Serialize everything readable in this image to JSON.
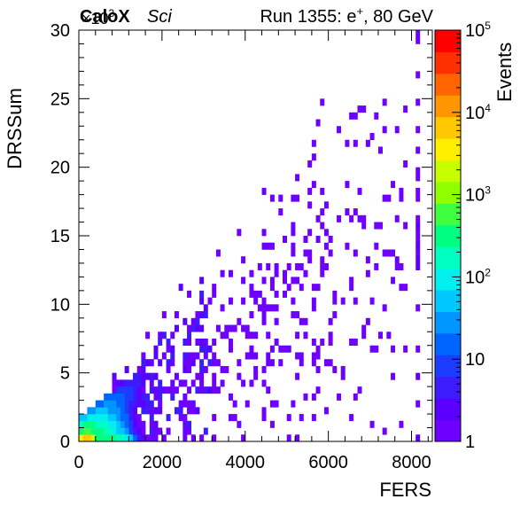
{
  "header": {
    "experiment": "CaloX",
    "detector": "Sci",
    "run_info": "Run 1355: e",
    "run_superscript": "+",
    "run_energy": ", 80 GeV"
  },
  "chart_data": {
    "type": "heatmap",
    "title": "",
    "xlabel": "FERS",
    "ylabel": "DRSSum",
    "zlabel": "Events",
    "xlim": [
      0,
      8500
    ],
    "ylim": [
      0,
      30000
    ],
    "zlim": [
      1,
      100000
    ],
    "z_scale": "log",
    "y_multiplier_label": "×10",
    "y_multiplier_exp": "3",
    "x_ticks": [
      0,
      2000,
      4000,
      6000,
      8000
    ],
    "x_tick_labels": [
      "0",
      "2000",
      "4000",
      "6000",
      "8000"
    ],
    "y_ticks": [
      0,
      5000,
      10000,
      15000,
      20000,
      25000,
      30000
    ],
    "y_tick_labels": [
      "0",
      "5",
      "10",
      "15",
      "20",
      "25",
      "30"
    ],
    "z_tick_labels": [
      {
        "base": "1",
        "exp": ""
      },
      {
        "base": "10",
        "exp": ""
      },
      {
        "base": "10",
        "exp": "2"
      },
      {
        "base": "10",
        "exp": "3"
      },
      {
        "base": "10",
        "exp": "4"
      },
      {
        "base": "10",
        "exp": "5"
      }
    ],
    "palette": [
      "#6e00ff",
      "#5a00ff",
      "#3c1bff",
      "#1e3cff",
      "#0064ff",
      "#0096ff",
      "#00c8ff",
      "#00f0f0",
      "#00ffc0",
      "#00ff80",
      "#40ff40",
      "#90ff00",
      "#c8ff00",
      "#fff000",
      "#ffc800",
      "#ff9600",
      "#ff6400",
      "#ff3000",
      "#ff0000"
    ],
    "bin_width_x": 100,
    "bin_width_y": 500,
    "core_bins": [
      {
        "x": 0,
        "y": 0,
        "c": 3000
      },
      {
        "x": 100,
        "y": 0,
        "c": 8000
      },
      {
        "x": 200,
        "y": 0,
        "c": 6000
      },
      {
        "x": 300,
        "y": 0,
        "c": 1500
      },
      {
        "x": 400,
        "y": 0,
        "c": 400
      },
      {
        "x": 500,
        "y": 0,
        "c": 300
      },
      {
        "x": 600,
        "y": 0,
        "c": 400
      },
      {
        "x": 700,
        "y": 0,
        "c": 300
      },
      {
        "x": 800,
        "y": 0,
        "c": 250
      },
      {
        "x": 900,
        "y": 0,
        "c": 200
      },
      {
        "x": 1000,
        "y": 0,
        "c": 200
      },
      {
        "x": 1100,
        "y": 0,
        "c": 120
      },
      {
        "x": 1200,
        "y": 0,
        "c": 60
      },
      {
        "x": 1300,
        "y": 0,
        "c": 20
      },
      {
        "x": 1400,
        "y": 0,
        "c": 5
      },
      {
        "x": 1500,
        "y": 0,
        "c": 2
      },
      {
        "x": 0,
        "y": 500,
        "c": 400
      },
      {
        "x": 100,
        "y": 500,
        "c": 600
      },
      {
        "x": 200,
        "y": 500,
        "c": 500
      },
      {
        "x": 300,
        "y": 500,
        "c": 400
      },
      {
        "x": 400,
        "y": 500,
        "c": 300
      },
      {
        "x": 500,
        "y": 500,
        "c": 250
      },
      {
        "x": 600,
        "y": 500,
        "c": 200
      },
      {
        "x": 700,
        "y": 500,
        "c": 150
      },
      {
        "x": 800,
        "y": 500,
        "c": 100
      },
      {
        "x": 900,
        "y": 500,
        "c": 60
      },
      {
        "x": 1000,
        "y": 500,
        "c": 40
      },
      {
        "x": 1100,
        "y": 500,
        "c": 25
      },
      {
        "x": 1200,
        "y": 500,
        "c": 10
      },
      {
        "x": 1300,
        "y": 500,
        "c": 5
      },
      {
        "x": 1400,
        "y": 500,
        "c": 2
      },
      {
        "x": 0,
        "y": 1000,
        "c": 150
      },
      {
        "x": 100,
        "y": 1000,
        "c": 250
      },
      {
        "x": 200,
        "y": 1000,
        "c": 300
      },
      {
        "x": 300,
        "y": 1000,
        "c": 250
      },
      {
        "x": 400,
        "y": 1000,
        "c": 200
      },
      {
        "x": 500,
        "y": 1000,
        "c": 160
      },
      {
        "x": 600,
        "y": 1000,
        "c": 130
      },
      {
        "x": 700,
        "y": 1000,
        "c": 100
      },
      {
        "x": 800,
        "y": 1000,
        "c": 70
      },
      {
        "x": 900,
        "y": 1000,
        "c": 45
      },
      {
        "x": 1000,
        "y": 1000,
        "c": 30
      },
      {
        "x": 1100,
        "y": 1000,
        "c": 15
      },
      {
        "x": 1200,
        "y": 1000,
        "c": 8
      },
      {
        "x": 1300,
        "y": 1000,
        "c": 3
      },
      {
        "x": 0,
        "y": 1500,
        "c": 40
      },
      {
        "x": 100,
        "y": 1500,
        "c": 60
      },
      {
        "x": 200,
        "y": 1500,
        "c": 80
      },
      {
        "x": 300,
        "y": 1500,
        "c": 90
      },
      {
        "x": 400,
        "y": 1500,
        "c": 90
      },
      {
        "x": 500,
        "y": 1500,
        "c": 80
      },
      {
        "x": 600,
        "y": 1500,
        "c": 70
      },
      {
        "x": 700,
        "y": 1500,
        "c": 55
      },
      {
        "x": 800,
        "y": 1500,
        "c": 40
      },
      {
        "x": 900,
        "y": 1500,
        "c": 30
      },
      {
        "x": 1000,
        "y": 1500,
        "c": 20
      },
      {
        "x": 1100,
        "y": 1500,
        "c": 12
      },
      {
        "x": 1200,
        "y": 1500,
        "c": 6
      },
      {
        "x": 1300,
        "y": 1500,
        "c": 3
      },
      {
        "x": 200,
        "y": 2000,
        "c": 25
      },
      {
        "x": 300,
        "y": 2000,
        "c": 35
      },
      {
        "x": 400,
        "y": 2000,
        "c": 40
      },
      {
        "x": 500,
        "y": 2000,
        "c": 40
      },
      {
        "x": 600,
        "y": 2000,
        "c": 40
      },
      {
        "x": 700,
        "y": 2000,
        "c": 35
      },
      {
        "x": 800,
        "y": 2000,
        "c": 30
      },
      {
        "x": 900,
        "y": 2000,
        "c": 22
      },
      {
        "x": 1000,
        "y": 2000,
        "c": 16
      },
      {
        "x": 1100,
        "y": 2000,
        "c": 10
      },
      {
        "x": 1200,
        "y": 2000,
        "c": 6
      },
      {
        "x": 1300,
        "y": 2000,
        "c": 3
      },
      {
        "x": 400,
        "y": 2500,
        "c": 15
      },
      {
        "x": 500,
        "y": 2500,
        "c": 20
      },
      {
        "x": 600,
        "y": 2500,
        "c": 25
      },
      {
        "x": 700,
        "y": 2500,
        "c": 25
      },
      {
        "x": 800,
        "y": 2500,
        "c": 22
      },
      {
        "x": 900,
        "y": 2500,
        "c": 18
      },
      {
        "x": 1000,
        "y": 2500,
        "c": 14
      },
      {
        "x": 1100,
        "y": 2500,
        "c": 10
      },
      {
        "x": 1200,
        "y": 2500,
        "c": 6
      },
      {
        "x": 1300,
        "y": 2500,
        "c": 4
      },
      {
        "x": 1400,
        "y": 2500,
        "c": 2
      },
      {
        "x": 600,
        "y": 3000,
        "c": 12
      },
      {
        "x": 700,
        "y": 3000,
        "c": 16
      },
      {
        "x": 800,
        "y": 3000,
        "c": 18
      },
      {
        "x": 900,
        "y": 3000,
        "c": 16
      },
      {
        "x": 1000,
        "y": 3000,
        "c": 14
      },
      {
        "x": 1100,
        "y": 3000,
        "c": 10
      },
      {
        "x": 1200,
        "y": 3000,
        "c": 7
      },
      {
        "x": 1300,
        "y": 3000,
        "c": 4
      },
      {
        "x": 1400,
        "y": 3000,
        "c": 2
      },
      {
        "x": 900,
        "y": 3500,
        "c": 10
      },
      {
        "x": 1000,
        "y": 3500,
        "c": 10
      },
      {
        "x": 1100,
        "y": 3500,
        "c": 9
      },
      {
        "x": 1200,
        "y": 3500,
        "c": 7
      },
      {
        "x": 1300,
        "y": 3500,
        "c": 5
      },
      {
        "x": 1400,
        "y": 3500,
        "c": 3
      },
      {
        "x": 1100,
        "y": 4000,
        "c": 6
      },
      {
        "x": 1200,
        "y": 4000,
        "c": 6
      },
      {
        "x": 1300,
        "y": 4000,
        "c": 5
      },
      {
        "x": 1400,
        "y": 4000,
        "c": 4
      },
      {
        "x": 1500,
        "y": 4000,
        "c": 3
      },
      {
        "x": 1300,
        "y": 4500,
        "c": 4
      },
      {
        "x": 1400,
        "y": 4500,
        "c": 4
      },
      {
        "x": 1500,
        "y": 4500,
        "c": 3
      },
      {
        "x": 1600,
        "y": 4500,
        "c": 3
      },
      {
        "x": 1700,
        "y": 4500,
        "c": 2
      }
    ],
    "overflow_bins": [
      {
        "x": 8100,
        "y": 0,
        "c": 3
      },
      {
        "x": 8100,
        "y": 2500,
        "c": 1
      },
      {
        "x": 8100,
        "y": 4500,
        "c": 2
      },
      {
        "x": 8100,
        "y": 6500,
        "c": 1
      },
      {
        "x": 8100,
        "y": 9500,
        "c": 1
      },
      {
        "x": 8100,
        "y": 12500,
        "c": 2
      },
      {
        "x": 8100,
        "y": 13000,
        "c": 2
      },
      {
        "x": 8100,
        "y": 13500,
        "c": 1
      },
      {
        "x": 8100,
        "y": 14000,
        "c": 2
      },
      {
        "x": 8100,
        "y": 14500,
        "c": 1
      },
      {
        "x": 8100,
        "y": 15000,
        "c": 1
      },
      {
        "x": 8100,
        "y": 15500,
        "c": 2
      },
      {
        "x": 8100,
        "y": 16000,
        "c": 1
      },
      {
        "x": 8100,
        "y": 17500,
        "c": 1
      },
      {
        "x": 8100,
        "y": 18000,
        "c": 1
      },
      {
        "x": 8100,
        "y": 19000,
        "c": 1
      },
      {
        "x": 8100,
        "y": 19500,
        "c": 1
      },
      {
        "x": 8100,
        "y": 21000,
        "c": 1
      },
      {
        "x": 8100,
        "y": 22500,
        "c": 1
      },
      {
        "x": 8100,
        "y": 24500,
        "c": 1
      },
      {
        "x": 8100,
        "y": 26500,
        "c": 1
      },
      {
        "x": 8100,
        "y": 29000,
        "c": 1
      },
      {
        "x": 8100,
        "y": 29500,
        "c": 1
      }
    ],
    "tail_seed": 1355,
    "tail_samples": 700,
    "tail_slope": 1.9,
    "tail_x_range": [
      800,
      7900
    ]
  }
}
